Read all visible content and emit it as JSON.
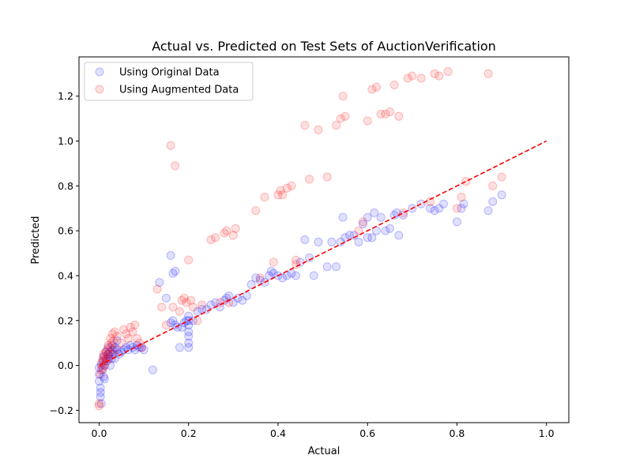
{
  "chart_data": {
    "type": "scatter",
    "title": "Actual vs. Predicted on Test Sets of AuctionVerification",
    "xlabel": "Actual",
    "ylabel": "Predicted",
    "xlim": [
      -0.045,
      1.05
    ],
    "ylim": [
      -0.255,
      1.375
    ],
    "xticks": [
      0.0,
      0.2,
      0.4,
      0.6,
      0.8,
      1.0
    ],
    "xtick_labels": [
      "0.0",
      "0.2",
      "0.4",
      "0.6",
      "0.8",
      "1.0"
    ],
    "yticks": [
      -0.2,
      0.0,
      0.2,
      0.4,
      0.6,
      0.8,
      1.0,
      1.2
    ],
    "ytick_labels": [
      "−0.2",
      "0.0",
      "0.2",
      "0.4",
      "0.6",
      "0.8",
      "1.0",
      "1.2"
    ],
    "grid": false,
    "legend_position": "top-left",
    "reference_line": {
      "x": [
        0.0,
        1.0
      ],
      "y": [
        0.0,
        1.0
      ],
      "style": "dashed",
      "color": "#ff0000"
    },
    "series": [
      {
        "name": "Using Original Data",
        "color": "#0000ff",
        "alpha": 0.12,
        "points": [
          [
            0.0,
            -0.01
          ],
          [
            0.0,
            -0.04
          ],
          [
            0.0,
            -0.07
          ],
          [
            0.003,
            -0.1
          ],
          [
            0.003,
            -0.12
          ],
          [
            0.003,
            -0.14
          ],
          [
            0.005,
            -0.17
          ],
          [
            0.005,
            0.0
          ],
          [
            0.008,
            0.02
          ],
          [
            0.008,
            -0.02
          ],
          [
            0.01,
            0.04
          ],
          [
            0.01,
            -0.05
          ],
          [
            0.012,
            0.0
          ],
          [
            0.012,
            -0.06
          ],
          [
            0.015,
            0.03
          ],
          [
            0.015,
            0.06
          ],
          [
            0.018,
            0.02
          ],
          [
            0.02,
            0.05
          ],
          [
            0.02,
            0.08
          ],
          [
            0.022,
            0.04
          ],
          [
            0.025,
            0.06
          ],
          [
            0.025,
            0.0
          ],
          [
            0.028,
            0.03
          ],
          [
            0.03,
            0.07
          ],
          [
            0.03,
            0.09
          ],
          [
            0.032,
            0.05
          ],
          [
            0.035,
            0.08
          ],
          [
            0.035,
            0.03
          ],
          [
            0.04,
            0.07
          ],
          [
            0.04,
            0.11
          ],
          [
            0.045,
            0.05
          ],
          [
            0.05,
            0.06
          ],
          [
            0.055,
            0.07
          ],
          [
            0.06,
            0.08
          ],
          [
            0.065,
            0.07
          ],
          [
            0.07,
            0.09
          ],
          [
            0.075,
            0.08
          ],
          [
            0.08,
            0.07
          ],
          [
            0.085,
            0.09
          ],
          [
            0.09,
            0.08
          ],
          [
            0.095,
            0.08
          ],
          [
            0.1,
            0.07
          ],
          [
            0.12,
            -0.02
          ],
          [
            0.135,
            0.37
          ],
          [
            0.15,
            0.3
          ],
          [
            0.16,
            0.49
          ],
          [
            0.165,
            0.41
          ],
          [
            0.17,
            0.42
          ],
          [
            0.16,
            0.19
          ],
          [
            0.165,
            0.2
          ],
          [
            0.17,
            0.18
          ],
          [
            0.175,
            0.17
          ],
          [
            0.18,
            0.08
          ],
          [
            0.185,
            0.17
          ],
          [
            0.19,
            0.19
          ],
          [
            0.195,
            0.2
          ],
          [
            0.2,
            0.15
          ],
          [
            0.2,
            0.13
          ],
          [
            0.2,
            0.08
          ],
          [
            0.2,
            0.1
          ],
          [
            0.2,
            0.18
          ],
          [
            0.2,
            0.2
          ],
          [
            0.2,
            0.22
          ],
          [
            0.21,
            0.2
          ],
          [
            0.22,
            0.24
          ],
          [
            0.23,
            0.25
          ],
          [
            0.24,
            0.25
          ],
          [
            0.25,
            0.27
          ],
          [
            0.26,
            0.28
          ],
          [
            0.27,
            0.26
          ],
          [
            0.28,
            0.29
          ],
          [
            0.285,
            0.3
          ],
          [
            0.29,
            0.31
          ],
          [
            0.3,
            0.28
          ],
          [
            0.31,
            0.3
          ],
          [
            0.32,
            0.29
          ],
          [
            0.33,
            0.31
          ],
          [
            0.34,
            0.36
          ],
          [
            0.35,
            0.39
          ],
          [
            0.36,
            0.38
          ],
          [
            0.37,
            0.37
          ],
          [
            0.38,
            0.4
          ],
          [
            0.385,
            0.42
          ],
          [
            0.39,
            0.41
          ],
          [
            0.4,
            0.4
          ],
          [
            0.41,
            0.39
          ],
          [
            0.42,
            0.4
          ],
          [
            0.43,
            0.41
          ],
          [
            0.44,
            0.4
          ],
          [
            0.45,
            0.46
          ],
          [
            0.46,
            0.56
          ],
          [
            0.47,
            0.48
          ],
          [
            0.48,
            0.4
          ],
          [
            0.49,
            0.55
          ],
          [
            0.51,
            0.44
          ],
          [
            0.52,
            0.55
          ],
          [
            0.53,
            0.44
          ],
          [
            0.54,
            0.55
          ],
          [
            0.545,
            0.66
          ],
          [
            0.55,
            0.57
          ],
          [
            0.56,
            0.58
          ],
          [
            0.57,
            0.58
          ],
          [
            0.58,
            0.55
          ],
          [
            0.59,
            0.63
          ],
          [
            0.6,
            0.57
          ],
          [
            0.6,
            0.66
          ],
          [
            0.61,
            0.57
          ],
          [
            0.615,
            0.68
          ],
          [
            0.62,
            0.6
          ],
          [
            0.63,
            0.66
          ],
          [
            0.64,
            0.6
          ],
          [
            0.65,
            0.61
          ],
          [
            0.66,
            0.67
          ],
          [
            0.665,
            0.68
          ],
          [
            0.67,
            0.58
          ],
          [
            0.68,
            0.67
          ],
          [
            0.7,
            0.7
          ],
          [
            0.72,
            0.72
          ],
          [
            0.74,
            0.7
          ],
          [
            0.75,
            0.69
          ],
          [
            0.76,
            0.7
          ],
          [
            0.77,
            0.72
          ],
          [
            0.8,
            0.64
          ],
          [
            0.81,
            0.7
          ],
          [
            0.815,
            0.72
          ],
          [
            0.87,
            0.69
          ],
          [
            0.88,
            0.73
          ],
          [
            0.9,
            0.76
          ]
        ]
      },
      {
        "name": "Using Augmented Data",
        "color": "#ff0000",
        "alpha": 0.12,
        "points": [
          [
            0.0,
            -0.18
          ],
          [
            0.0,
            -0.17
          ],
          [
            0.003,
            -0.04
          ],
          [
            0.005,
            -0.02
          ],
          [
            0.005,
            0.01
          ],
          [
            0.008,
            0.03
          ],
          [
            0.008,
            -0.01
          ],
          [
            0.01,
            0.05
          ],
          [
            0.01,
            0.02
          ],
          [
            0.012,
            0.04
          ],
          [
            0.012,
            0.0
          ],
          [
            0.015,
            0.06
          ],
          [
            0.015,
            0.02
          ],
          [
            0.018,
            0.07
          ],
          [
            0.02,
            0.05
          ],
          [
            0.02,
            0.09
          ],
          [
            0.022,
            0.03
          ],
          [
            0.025,
            0.08
          ],
          [
            0.025,
            0.12
          ],
          [
            0.028,
            0.1
          ],
          [
            0.03,
            0.14
          ],
          [
            0.03,
            0.05
          ],
          [
            0.032,
            0.11
          ],
          [
            0.035,
            0.15
          ],
          [
            0.035,
            0.07
          ],
          [
            0.04,
            0.13
          ],
          [
            0.05,
            0.1
          ],
          [
            0.055,
            0.16
          ],
          [
            0.06,
            0.14
          ],
          [
            0.065,
            0.12
          ],
          [
            0.07,
            0.17
          ],
          [
            0.075,
            0.15
          ],
          [
            0.08,
            0.18
          ],
          [
            0.085,
            0.12
          ],
          [
            0.09,
            0.1
          ],
          [
            0.095,
            0.08
          ],
          [
            0.13,
            0.34
          ],
          [
            0.14,
            0.26
          ],
          [
            0.15,
            0.18
          ],
          [
            0.16,
            0.98
          ],
          [
            0.165,
            0.26
          ],
          [
            0.17,
            0.89
          ],
          [
            0.18,
            0.24
          ],
          [
            0.185,
            0.29
          ],
          [
            0.19,
            0.3
          ],
          [
            0.195,
            0.28
          ],
          [
            0.2,
            0.47
          ],
          [
            0.205,
            0.29
          ],
          [
            0.21,
            0.26
          ],
          [
            0.22,
            0.2
          ],
          [
            0.23,
            0.27
          ],
          [
            0.25,
            0.56
          ],
          [
            0.26,
            0.57
          ],
          [
            0.27,
            0.28
          ],
          [
            0.28,
            0.59
          ],
          [
            0.285,
            0.6
          ],
          [
            0.29,
            0.28
          ],
          [
            0.3,
            0.58
          ],
          [
            0.305,
            0.61
          ],
          [
            0.35,
            0.69
          ],
          [
            0.36,
            0.39
          ],
          [
            0.37,
            0.75
          ],
          [
            0.39,
            0.46
          ],
          [
            0.4,
            0.76
          ],
          [
            0.405,
            0.78
          ],
          [
            0.41,
            0.76
          ],
          [
            0.42,
            0.79
          ],
          [
            0.43,
            0.8
          ],
          [
            0.44,
            0.47
          ],
          [
            0.44,
            0.45
          ],
          [
            0.46,
            1.07
          ],
          [
            0.47,
            0.83
          ],
          [
            0.49,
            1.05
          ],
          [
            0.51,
            0.84
          ],
          [
            0.53,
            1.07
          ],
          [
            0.54,
            1.1
          ],
          [
            0.545,
            1.2
          ],
          [
            0.55,
            1.11
          ],
          [
            0.58,
            0.6
          ],
          [
            0.59,
            0.64
          ],
          [
            0.6,
            1.09
          ],
          [
            0.61,
            1.23
          ],
          [
            0.62,
            1.24
          ],
          [
            0.63,
            1.12
          ],
          [
            0.64,
            1.12
          ],
          [
            0.65,
            1.13
          ],
          [
            0.66,
            1.25
          ],
          [
            0.67,
            1.11
          ],
          [
            0.68,
            0.68
          ],
          [
            0.69,
            1.28
          ],
          [
            0.7,
            1.29
          ],
          [
            0.72,
            1.28
          ],
          [
            0.74,
            0.73
          ],
          [
            0.75,
            1.3
          ],
          [
            0.76,
            1.29
          ],
          [
            0.78,
            1.31
          ],
          [
            0.8,
            0.7
          ],
          [
            0.81,
            0.75
          ],
          [
            0.82,
            0.82
          ],
          [
            0.87,
            1.3
          ],
          [
            0.88,
            0.8
          ],
          [
            0.9,
            0.84
          ]
        ]
      }
    ]
  }
}
